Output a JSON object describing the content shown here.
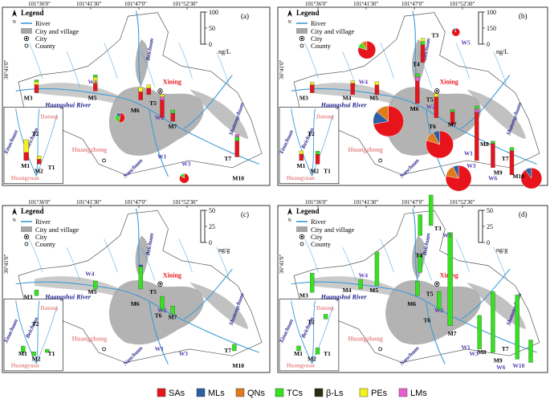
{
  "panels": [
    {
      "id": "a",
      "letter": "(a)",
      "coords_top": [
        "101°36'0\"",
        "101°41'30\"",
        "101°47'0\"",
        "101°52'30\""
      ],
      "coords_left": [
        "36°41'0\"",
        "36°35'30\""
      ],
      "legend_title": "Legend",
      "legend_items": [
        "River",
        "City and village",
        "City",
        "County"
      ],
      "scale": {
        "ticks": [
          "100",
          "50",
          "0"
        ],
        "unit": "ng/L"
      },
      "rivers": [
        "Haangshui River",
        "Beichuan",
        "Shatangchuan",
        "Nanchuan",
        "Xinachuan",
        "Beichuan",
        "Huangyuan"
      ],
      "cities": [
        "Xining",
        "Datong",
        "Huangzhong"
      ],
      "sites": [
        "M3",
        "M5",
        "M6",
        "T5",
        "M7",
        "T7",
        "M10",
        "W4",
        "W1",
        "W2",
        "W3",
        "T2",
        "M1",
        "M2",
        "T1"
      ]
    },
    {
      "id": "b",
      "letter": "(b)",
      "coords_top": [
        "101°36'0\"",
        "101°41'30\"",
        "101°47'0\"",
        "101°52'30\""
      ],
      "coords_left": [
        "36°41'0\"",
        "36°35'30\""
      ],
      "legend_title": "Legend",
      "legend_items": [
        "River",
        "City and village",
        "City",
        "County"
      ],
      "scale": {
        "ticks": [
          "100",
          "150",
          "0"
        ],
        "unit": "ng/L"
      },
      "rivers": [
        "Haangshui River",
        "Beichuan",
        "Shatangchuan",
        "Nanchuan",
        "Xinachuan",
        "Beichuan",
        "Huangyuan"
      ],
      "cities": [
        "Xining",
        "Datong",
        "Huangzhong"
      ],
      "sites": [
        "T3",
        "W5",
        "T4",
        "M3",
        "M4",
        "M5",
        "M6",
        "T5",
        "T6",
        "M7",
        "M8",
        "T7",
        "M9",
        "M10",
        "W4",
        "W1",
        "W2",
        "W3",
        "W6",
        "T2",
        "M1",
        "M2",
        "T1"
      ]
    },
    {
      "id": "c",
      "letter": "(c)",
      "coords_top": [
        "101°36'0\"",
        "101°41'30\"",
        "101°47'0\"",
        "101°52'30\""
      ],
      "coords_left": [
        "36°41'0\"",
        "36°35'30\""
      ],
      "legend_title": "Legend",
      "legend_items": [
        "River",
        "City and village",
        "City",
        "County"
      ],
      "scale": {
        "ticks": [
          "50",
          "25",
          "0"
        ],
        "unit": "ng/g"
      },
      "rivers": [
        "Haangshui River",
        "Beichuan",
        "Shatangchuan",
        "Nanchuan",
        "Xinachuan",
        "Beichuan",
        "Huangyuan"
      ],
      "cities": [
        "Xining",
        "Datong",
        "Huangzhong"
      ],
      "sites": [
        "M3",
        "M5",
        "M6",
        "T5",
        "T6",
        "M7",
        "T7",
        "M10",
        "W4",
        "W2",
        "W1",
        "W3",
        "T2",
        "M1",
        "M2",
        "T1"
      ]
    },
    {
      "id": "d",
      "letter": "(d)",
      "coords_top": [
        "101°36'0\"",
        "101°41'30\"",
        "101°47'0\"",
        "101°52'30\""
      ],
      "coords_left": [
        "36°41'0\"",
        "36°35'30\""
      ],
      "legend_title": "Legend",
      "legend_items": [
        "River",
        "City and village",
        "City",
        "County"
      ],
      "scale": {
        "ticks": [
          "50",
          "25",
          "0"
        ],
        "unit": "ng/g"
      },
      "rivers": [
        "Haangshui River",
        "Beichuan",
        "Shatangchuan",
        "Nanchuan",
        "Xinachuan",
        "Beichuan",
        "Huangyuan"
      ],
      "cities": [
        "Xining",
        "Datong",
        "Huangzhong"
      ],
      "sites": [
        "T3",
        "W5",
        "T4",
        "M3",
        "M4",
        "M5",
        "M6",
        "T5",
        "T6",
        "M7",
        "M8",
        "T7",
        "M9",
        "W10",
        "W4",
        "W2",
        "W1",
        "W3",
        "W6",
        "T2",
        "M1",
        "M2",
        "T1"
      ]
    }
  ],
  "class_legend": [
    {
      "label": "SAs",
      "color": "#e8141c"
    },
    {
      "label": "MLs",
      "color": "#2e5fa1"
    },
    {
      "label": "QNs",
      "color": "#e07b1c"
    },
    {
      "label": "TCs",
      "color": "#35e21f"
    },
    {
      "label": "β-Ls",
      "color": "#2c2c13"
    },
    {
      "label": "PEs",
      "color": "#f3f21c"
    },
    {
      "label": "LMs",
      "color": "#e85fd0"
    }
  ],
  "colors": {
    "river": "#3d9ad6",
    "urban": "#a6a6a6",
    "site_label": "#000000",
    "w_label": "#5b3db3",
    "city_label": "#e88d8d",
    "xining": "#e8141c",
    "river_label": "#1a1a8a"
  }
}
